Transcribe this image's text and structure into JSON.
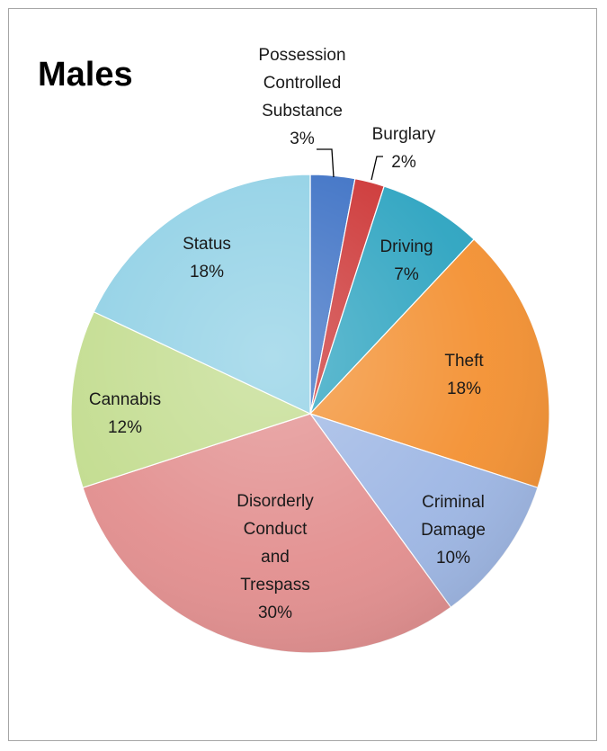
{
  "chart_data": {
    "type": "pie",
    "title": "Males",
    "slices": [
      {
        "name": "Possession Controlled Substance",
        "label_lines": [
          "Possession",
          "Controlled",
          "Substance",
          "3%"
        ],
        "value": 3,
        "color": "#3a6fc4"
      },
      {
        "name": "Burglary",
        "label_lines": [
          "Burglary",
          "2%"
        ],
        "value": 2,
        "color": "#cc3333"
      },
      {
        "name": "Driving",
        "label_lines": [
          "Driving",
          "7%"
        ],
        "value": 7,
        "color": "#2ba3c0"
      },
      {
        "name": "Theft",
        "label_lines": [
          "Theft",
          "18%"
        ],
        "value": 18,
        "color": "#f39031"
      },
      {
        "name": "Criminal Damage",
        "label_lines": [
          "Criminal",
          "Damage",
          "10%"
        ],
        "value": 10,
        "color": "#9db6e4"
      },
      {
        "name": "Disorderly Conduct and Trespass",
        "label_lines": [
          "Disorderly",
          "Conduct",
          "and",
          "Trespass",
          "30%"
        ],
        "value": 30,
        "color": "#e28e8e"
      },
      {
        "name": "Cannabis",
        "label_lines": [
          "Cannabis",
          "12%"
        ],
        "value": 12,
        "color": "#c2dc8e"
      },
      {
        "name": "Status",
        "label_lines": [
          "Status",
          "18%"
        ],
        "value": 18,
        "color": "#8fd0e5"
      }
    ]
  }
}
